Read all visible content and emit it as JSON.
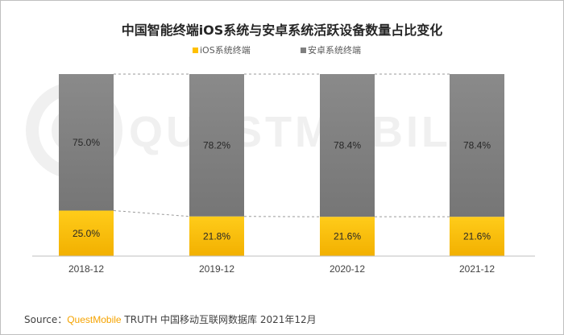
{
  "chart_data": {
    "type": "bar",
    "stacked": true,
    "title": "中国智能终端iOS系统与安卓系统活跃设备数量占比变化",
    "categories": [
      "2018-12",
      "2019-12",
      "2020-12",
      "2021-12"
    ],
    "series": [
      {
        "name": "iOS系统终端",
        "values": [
          25.0,
          21.8,
          21.6,
          21.6
        ],
        "labels": [
          "25.0%",
          "21.8%",
          "21.6%",
          "21.6%"
        ],
        "color": "#ffc000"
      },
      {
        "name": "安卓系统终端",
        "values": [
          75.0,
          78.2,
          78.4,
          78.4
        ],
        "labels": [
          "75.0%",
          "78.2%",
          "78.4%",
          "78.4%"
        ],
        "color": "#7f7f7f"
      }
    ],
    "ylim": [
      0,
      100
    ],
    "grid": false,
    "legend": "top-center",
    "connector_lines": "dashed"
  },
  "watermark": "QUESTMOBILE",
  "source": {
    "prefix": "Source：",
    "brand": "QuestMobile",
    "rest": " TRUTH 中国移动互联网数据库 2021年12月"
  }
}
